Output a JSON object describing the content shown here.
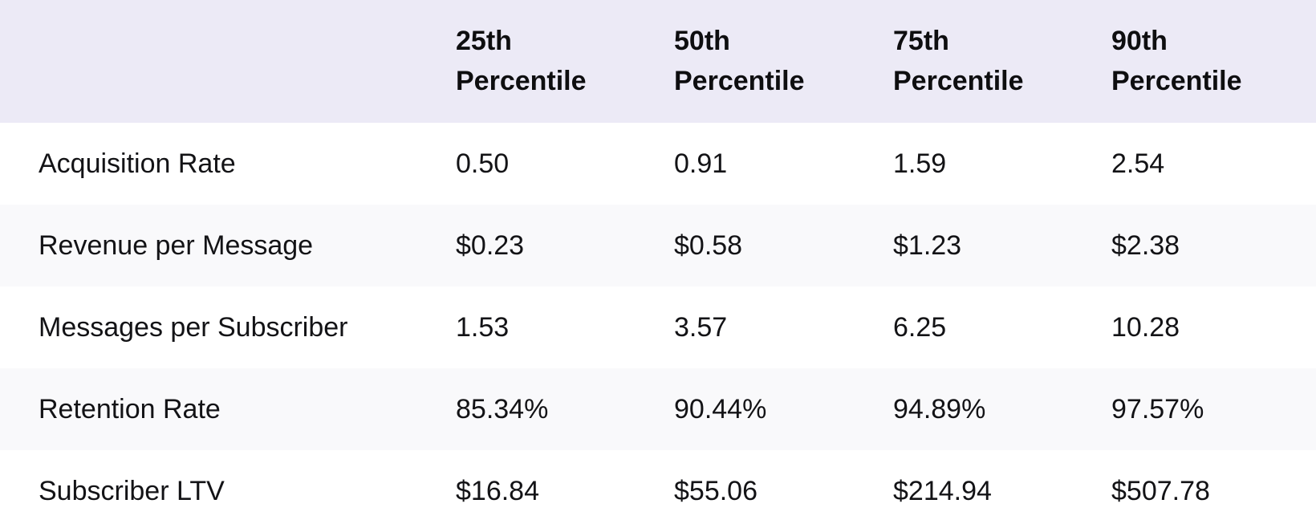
{
  "table": {
    "header": [
      "",
      "25th\nPercentile",
      "50th\nPercentile",
      "75th\nPercentile",
      "90th\nPercentile"
    ],
    "rows": [
      {
        "label": "Acquisition Rate",
        "values": [
          "0.50",
          "0.91",
          "1.59",
          "2.54"
        ]
      },
      {
        "label": "Revenue per Message",
        "values": [
          "$0.23",
          "$0.58",
          "$1.23",
          "$2.38"
        ]
      },
      {
        "label": "Messages per Subscriber",
        "values": [
          "1.53",
          "3.57",
          "6.25",
          "10.28"
        ]
      },
      {
        "label": "Retention Rate",
        "values": [
          "85.34%",
          "90.44%",
          "94.89%",
          "97.57%"
        ]
      },
      {
        "label": "Subscriber LTV",
        "values": [
          "$16.84",
          "$55.06",
          "$214.94",
          "$507.78"
        ]
      }
    ]
  },
  "colors": {
    "header_bg": "#ECEAF6",
    "row_bg": "#FFFFFF",
    "row_alt_bg": "#F9F9FB",
    "header_text": "#0E0E10",
    "body_text": "#131316"
  },
  "chart_data": {
    "type": "table",
    "title": "",
    "columns": [
      "",
      "25th Percentile",
      "50th Percentile",
      "75th Percentile",
      "90th Percentile"
    ],
    "rows": [
      [
        "Acquisition Rate",
        "0.50",
        "0.91",
        "1.59",
        "2.54"
      ],
      [
        "Revenue per Message",
        "$0.23",
        "$0.58",
        "$1.23",
        "$2.38"
      ],
      [
        "Messages per Subscriber",
        "1.53",
        "3.57",
        "6.25",
        "10.28"
      ],
      [
        "Retention Rate",
        "85.34%",
        "90.44%",
        "94.89%",
        "97.57%"
      ],
      [
        "Subscriber LTV",
        "$16.84",
        "$55.06",
        "$214.94",
        "$507.78"
      ]
    ],
    "layout_hints": {
      "striped_rows": true,
      "header_background": "#ECEAF6",
      "grid": "off",
      "first_column_role": "metric-name"
    }
  }
}
